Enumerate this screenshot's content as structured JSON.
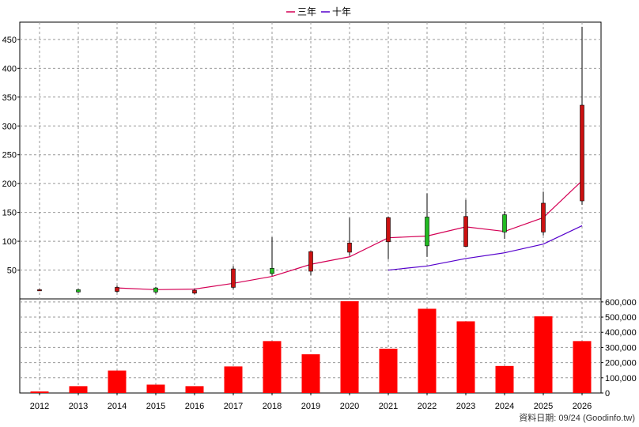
{
  "chart_data": [
    {
      "type": "candlestick",
      "legend_position": "top-center",
      "grid": true,
      "x": [
        "2012",
        "2013",
        "2014",
        "2015",
        "2016",
        "2017",
        "2018",
        "2019",
        "2020",
        "2021",
        "2022",
        "2023",
        "2024",
        "2025",
        "2026"
      ],
      "ylim": [
        0,
        480
      ],
      "yticks": [
        50,
        100,
        150,
        200,
        250,
        300,
        350,
        400,
        450
      ],
      "candles": [
        {
          "x": "2012",
          "open": 16,
          "close": 15,
          "high": 17,
          "low": 14,
          "color": "red"
        },
        {
          "x": "2013",
          "open": 12,
          "close": 16,
          "high": 17,
          "low": 11,
          "color": "green"
        },
        {
          "x": "2014",
          "open": 20,
          "close": 13,
          "high": 23,
          "low": 11,
          "color": "red"
        },
        {
          "x": "2015",
          "open": 12,
          "close": 19,
          "high": 21,
          "low": 9,
          "color": "green"
        },
        {
          "x": "2016",
          "open": 15,
          "close": 10,
          "high": 17,
          "low": 8,
          "color": "red"
        },
        {
          "x": "2017",
          "open": 52,
          "close": 20,
          "high": 57,
          "low": 17,
          "color": "red"
        },
        {
          "x": "2018",
          "open": 44,
          "close": 53,
          "high": 107,
          "low": 40,
          "color": "green"
        },
        {
          "x": "2019",
          "open": 82,
          "close": 48,
          "high": 83,
          "low": 41,
          "color": "red"
        },
        {
          "x": "2020",
          "open": 97,
          "close": 81,
          "high": 141,
          "low": 75,
          "color": "red"
        },
        {
          "x": "2021",
          "open": 141,
          "close": 99,
          "high": 143,
          "low": 69,
          "color": "red"
        },
        {
          "x": "2022",
          "open": 92,
          "close": 142,
          "high": 183,
          "low": 73,
          "color": "green"
        },
        {
          "x": "2023",
          "open": 143,
          "close": 91,
          "high": 172,
          "low": 90,
          "color": "red"
        },
        {
          "x": "2024",
          "open": 116,
          "close": 146,
          "high": 152,
          "low": 104,
          "color": "green"
        },
        {
          "x": "2025",
          "open": 166,
          "close": 116,
          "high": 186,
          "low": 110,
          "color": "red"
        },
        {
          "x": "2026",
          "open": 336,
          "close": 170,
          "high": 472,
          "low": 163,
          "color": "red"
        }
      ],
      "series": [
        {
          "name": "三年",
          "color": "#d40055",
          "points": [
            [
              "2014",
              19
            ],
            [
              "2015",
              16
            ],
            [
              "2016",
              17
            ],
            [
              "2017",
              27
            ],
            [
              "2018",
              39
            ],
            [
              "2019",
              60
            ],
            [
              "2020",
              73
            ],
            [
              "2021",
              106
            ],
            [
              "2022",
              109
            ],
            [
              "2023",
              125
            ],
            [
              "2024",
              117
            ],
            [
              "2025",
              141
            ],
            [
              "2026",
              205
            ]
          ]
        },
        {
          "name": "十年",
          "color": "#5500cc",
          "points": [
            [
              "2021",
              50
            ],
            [
              "2022",
              57
            ],
            [
              "2023",
              70
            ],
            [
              "2024",
              80
            ],
            [
              "2025",
              95
            ],
            [
              "2026",
              127
            ]
          ]
        }
      ]
    },
    {
      "type": "bar",
      "x": [
        "2012",
        "2013",
        "2014",
        "2015",
        "2016",
        "2017",
        "2018",
        "2019",
        "2020",
        "2021",
        "2022",
        "2023",
        "2024",
        "2025",
        "2026"
      ],
      "values": [
        10000,
        45000,
        148000,
        55000,
        45000,
        175000,
        342000,
        255000,
        605000,
        292000,
        555000,
        472000,
        178000,
        505000,
        342000
      ],
      "color": "#ff0000",
      "ylim": [
        0,
        620000
      ],
      "yticks": [
        "0",
        "100,000",
        "200,000",
        "300,000",
        "400,000",
        "500,000",
        "600,000"
      ]
    }
  ],
  "legend": {
    "items": [
      "三年",
      "十年"
    ]
  },
  "footer": {
    "source": "資料日期: 09/24  (Goodinfo.tw)"
  }
}
